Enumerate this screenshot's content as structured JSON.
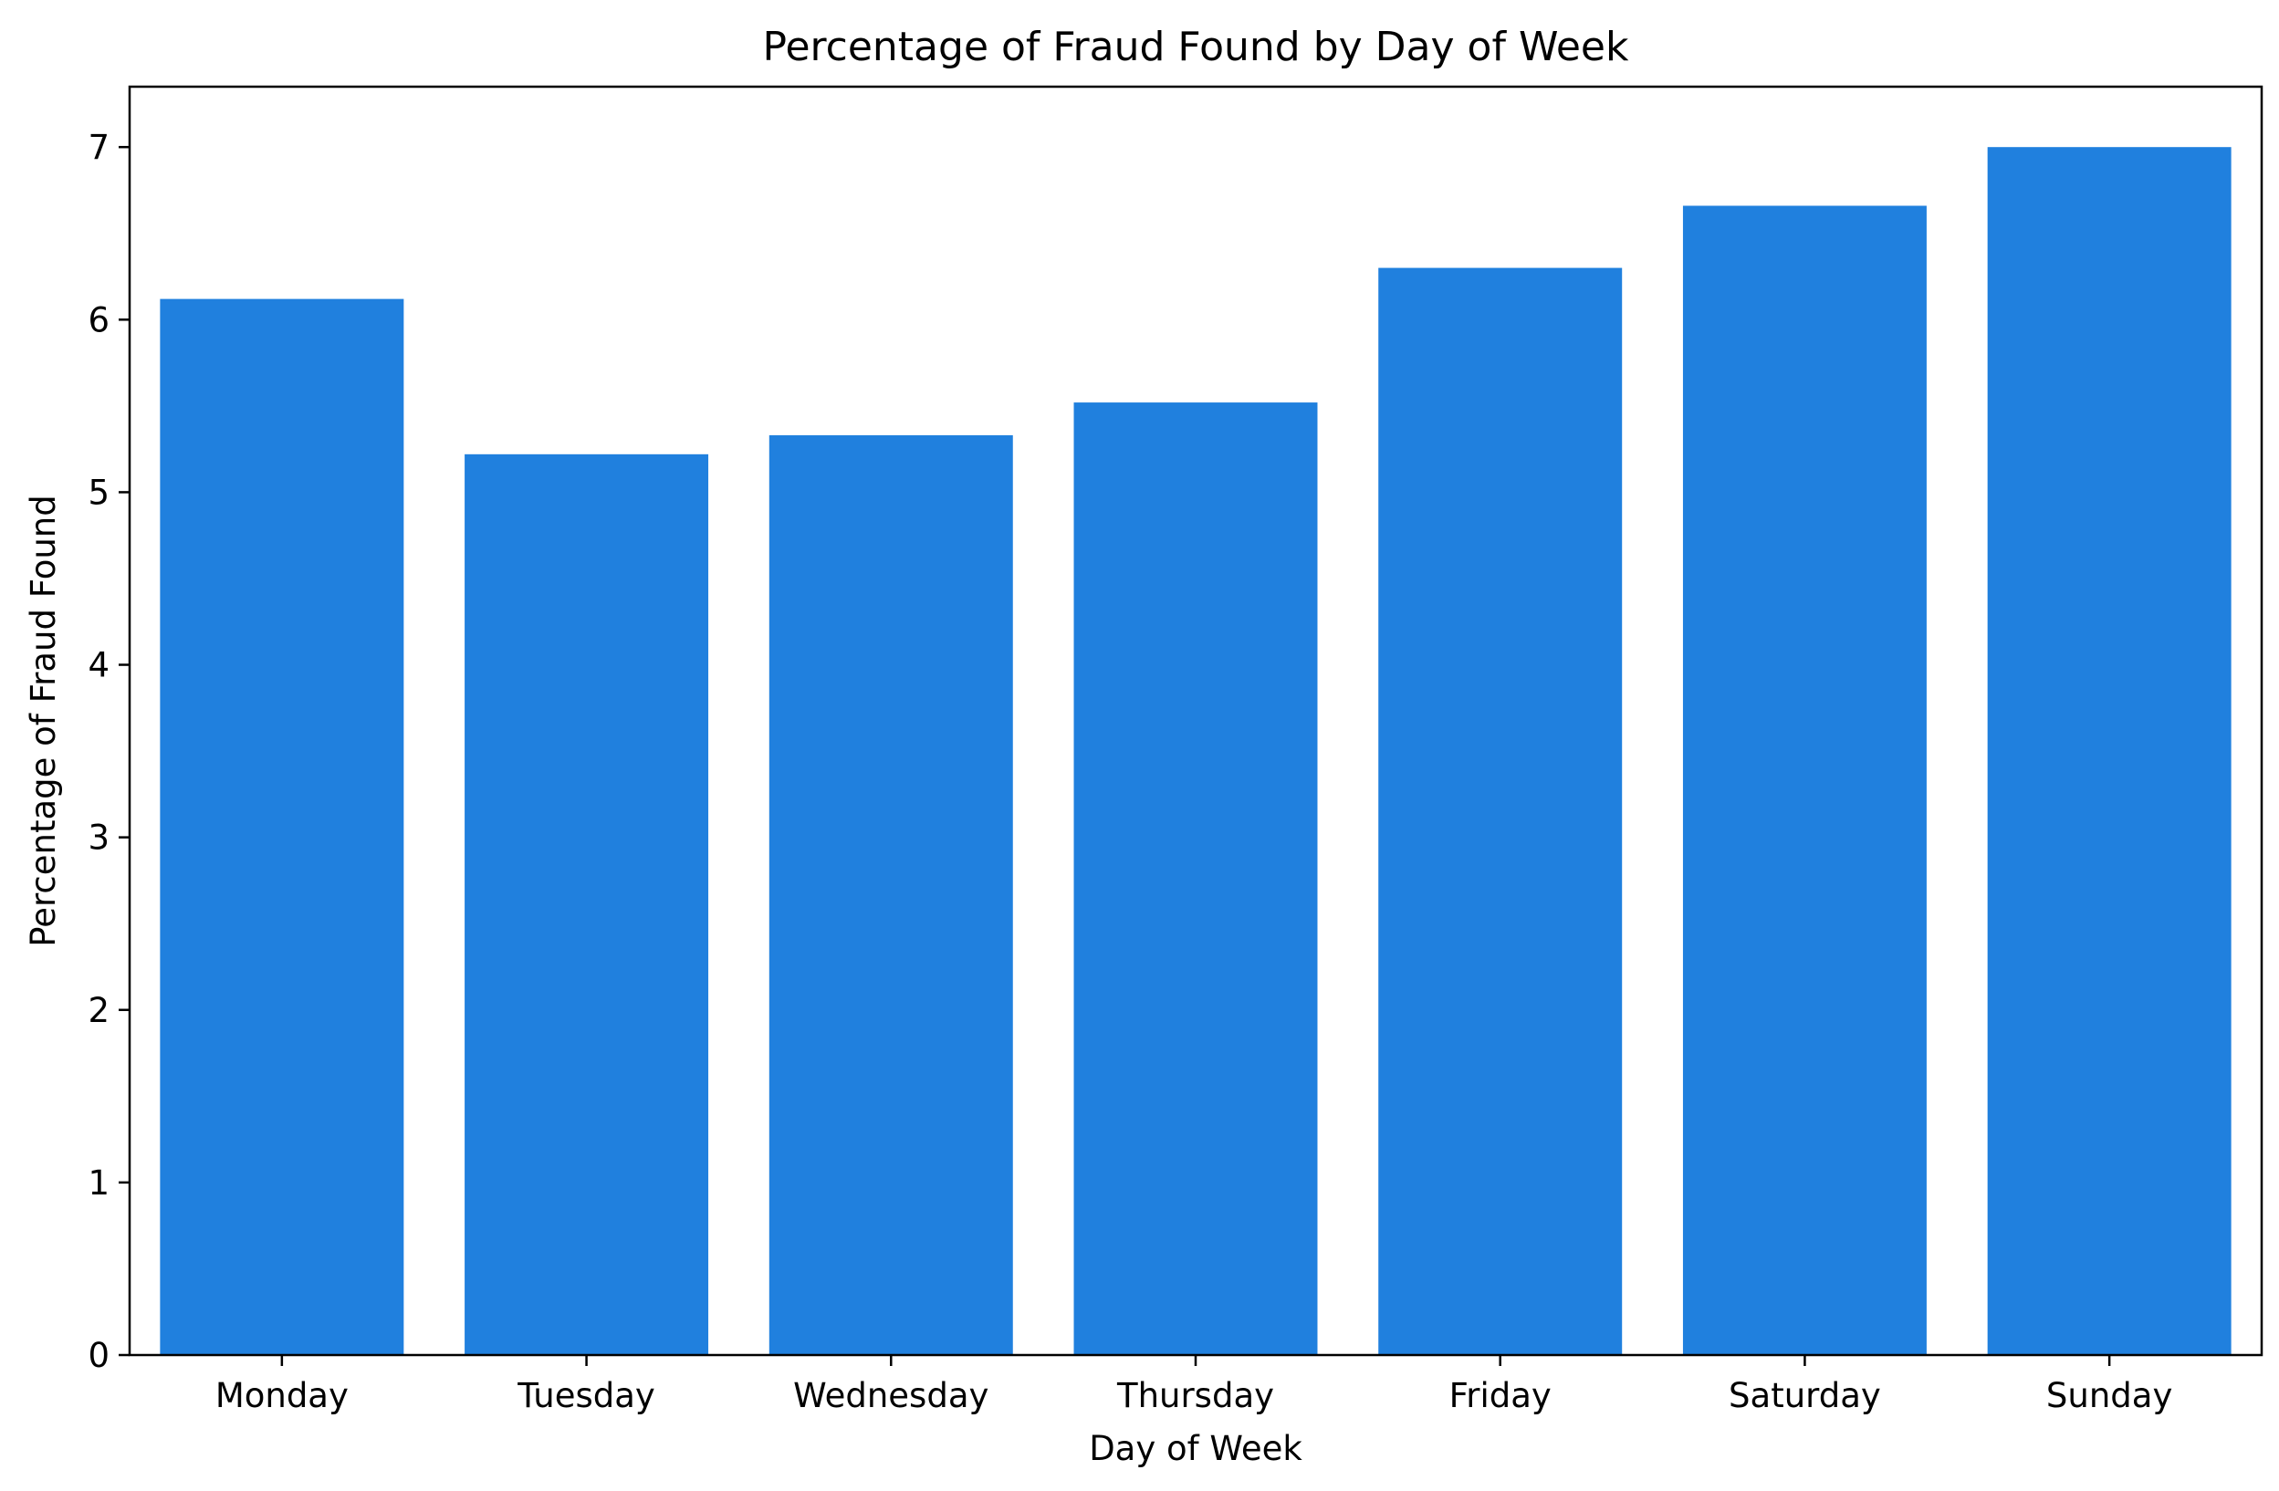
{
  "chart_data": {
    "type": "bar",
    "title": "Percentage of Fraud Found by Day of Week",
    "xlabel": "Day of Week",
    "ylabel": "Percentage of Fraud Found",
    "categories": [
      "Monday",
      "Tuesday",
      "Wednesday",
      "Thursday",
      "Friday",
      "Saturday",
      "Sunday"
    ],
    "values": [
      6.12,
      5.22,
      5.33,
      5.52,
      6.3,
      6.66,
      7.0
    ],
    "ylim": [
      0,
      7.35
    ],
    "yticks": [
      "0",
      "1",
      "2",
      "3",
      "4",
      "5",
      "6",
      "7"
    ],
    "grid": false,
    "bar_color": "#2080de"
  }
}
